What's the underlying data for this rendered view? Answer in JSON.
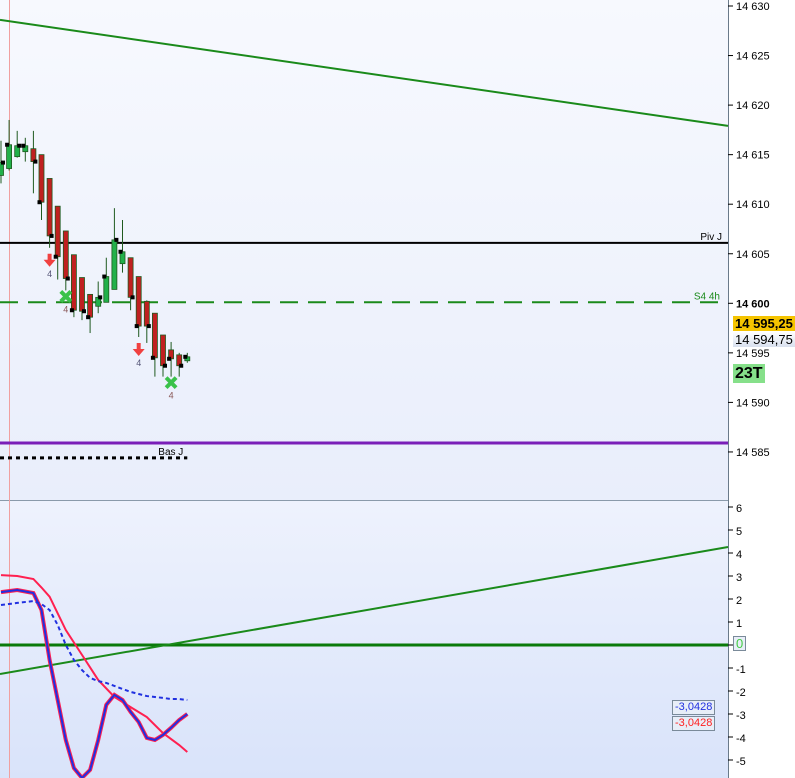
{
  "chart_data": [
    {
      "type": "candlestick",
      "price_axis": {
        "ylim": [
          14580.5,
          14630.6
        ],
        "ticks": [
          "14 630",
          "14 625",
          "14 620",
          "14 615",
          "14 610",
          "14 605",
          "14 600",
          "14 595",
          "14 590",
          "14 585"
        ],
        "tick_values": [
          14630,
          14625,
          14620,
          14615,
          14610,
          14605,
          14600,
          14595,
          14590,
          14585
        ]
      },
      "candles": [
        {
          "o": 14612.9,
          "h": 14616.4,
          "l": 14612.1,
          "c": 14614.2
        },
        {
          "o": 14613.6,
          "h": 14618.5,
          "l": 14613.4,
          "c": 14616.0
        },
        {
          "o": 14614.8,
          "h": 14617.4,
          "l": 14614.7,
          "c": 14615.9
        },
        {
          "o": 14615.3,
          "h": 14616.7,
          "l": 14614.3,
          "c": 14615.9
        },
        {
          "o": 14615.6,
          "h": 14617.4,
          "l": 14611.1,
          "c": 14614.3
        },
        {
          "o": 14615.0,
          "h": 14615.0,
          "l": 14608.4,
          "c": 14610.2
        },
        {
          "o": 14612.6,
          "h": 14612.6,
          "l": 14605.6,
          "c": 14606.8
        },
        {
          "o": 14609.8,
          "h": 14609.8,
          "l": 14602.4,
          "c": 14604.7
        },
        {
          "o": 14607.3,
          "h": 14607.3,
          "l": 14601.3,
          "c": 14602.5
        },
        {
          "o": 14604.9,
          "h": 14604.9,
          "l": 14598.6,
          "c": 14599.3
        },
        {
          "o": 14602.6,
          "h": 14602.6,
          "l": 14598.3,
          "c": 14599.2
        },
        {
          "o": 14600.9,
          "h": 14600.9,
          "l": 14597.0,
          "c": 14598.6
        },
        {
          "o": 14599.7,
          "h": 14602.2,
          "l": 14599.0,
          "c": 14600.6
        },
        {
          "o": 14600.1,
          "h": 14604.6,
          "l": 14600.1,
          "c": 14602.7
        },
        {
          "o": 14601.4,
          "h": 14609.6,
          "l": 14601.4,
          "c": 14606.4
        },
        {
          "o": 14604.0,
          "h": 14608.4,
          "l": 14603.1,
          "c": 14605.2
        },
        {
          "o": 14604.6,
          "h": 14604.6,
          "l": 14599.3,
          "c": 14600.6
        },
        {
          "o": 14602.7,
          "h": 14602.7,
          "l": 14596.6,
          "c": 14597.7
        },
        {
          "o": 14600.2,
          "h": 14600.3,
          "l": 14596.0,
          "c": 14597.7
        },
        {
          "o": 14599.0,
          "h": 14599.0,
          "l": 14592.6,
          "c": 14594.5
        },
        {
          "o": 14596.8,
          "h": 14596.8,
          "l": 14592.6,
          "c": 14593.7
        },
        {
          "o": 14595.3,
          "h": 14596.1,
          "l": 14592.6,
          "c": 14594.4
        },
        {
          "o": 14594.8,
          "h": 14595.0,
          "l": 14592.6,
          "c": 14593.7
        },
        {
          "o": 14594.2,
          "h": 14595.0,
          "l": 14594.0,
          "c": 14594.6
        }
      ],
      "signals": [
        {
          "type": "sell-arrow",
          "index": 6,
          "label": "4"
        },
        {
          "type": "buy-cross",
          "index": 8,
          "label": "4"
        },
        {
          "type": "sell-arrow",
          "index": 17,
          "label": "4"
        },
        {
          "type": "buy-cross",
          "index": 21,
          "label": "4"
        }
      ],
      "levels": [
        {
          "name": "Piv J",
          "value": 14606.1,
          "color": "#000000",
          "style": "solid"
        },
        {
          "name": "S4 4h",
          "value": 14600.1,
          "color": "#1a8a1a",
          "style": "dashed"
        },
        {
          "name": "",
          "value": 14585.9,
          "color": "#7a1fb8",
          "style": "solid"
        },
        {
          "name": "Bas J",
          "value": 14584.4,
          "color": "#000000",
          "style": "dotted",
          "to_index": 23
        }
      ],
      "trendline": {
        "from": 14628.6,
        "to": 14617.9,
        "color": "#1a8a1a"
      },
      "price_tags": [
        {
          "text": "14 595,25",
          "bg": "#f5c400"
        },
        {
          "text": "14 594,75",
          "bg": "#e6ecf7"
        },
        {
          "text": "23T",
          "bg": "#86e08a"
        }
      ]
    },
    {
      "type": "line",
      "ylim": [
        -5.8,
        6.2
      ],
      "ticks": [
        "6",
        "5",
        "4",
        "3",
        "2",
        "1",
        "0",
        "-1",
        "-2",
        "-3",
        "-4",
        "-5"
      ],
      "tick_values": [
        6,
        5,
        4,
        3,
        2,
        1,
        0,
        -1,
        -2,
        -3,
        -4,
        -5
      ],
      "series": [
        {
          "color": "#ff2050",
          "style": "solid",
          "points": [
            [
              0,
              3.04
            ],
            [
              2,
              3.0
            ],
            [
              4,
              2.87
            ],
            [
              5,
              2.5
            ],
            [
              6,
              2.1
            ],
            [
              8,
              0.65
            ],
            [
              10,
              -0.43
            ],
            [
              12,
              -1.52
            ],
            [
              14,
              -2.26
            ],
            [
              16,
              -2.7
            ],
            [
              18,
              -3.13
            ],
            [
              20,
              -3.83
            ],
            [
              22,
              -4.35
            ],
            [
              23,
              -4.65
            ]
          ]
        },
        {
          "color": "#2030e0",
          "style": "solid-double",
          "points": [
            [
              0,
              2.3
            ],
            [
              2,
              2.39
            ],
            [
              4,
              2.26
            ],
            [
              5,
              1.52
            ],
            [
              6,
              -0.65
            ],
            [
              7,
              -2.39
            ],
            [
              8,
              -4.13
            ],
            [
              9,
              -5.35
            ],
            [
              10,
              -5.78
            ],
            [
              11,
              -5.43
            ],
            [
              12,
              -4.13
            ],
            [
              13,
              -2.6
            ],
            [
              14,
              -2.17
            ],
            [
              15,
              -2.39
            ],
            [
              16,
              -2.91
            ],
            [
              17,
              -3.35
            ],
            [
              18,
              -4.04
            ],
            [
              19,
              -4.13
            ],
            [
              20,
              -3.91
            ],
            [
              21,
              -3.6
            ],
            [
              22,
              -3.26
            ],
            [
              23,
              -3.0
            ]
          ]
        },
        {
          "color": "#2030e0",
          "style": "dotted",
          "points": [
            [
              0,
              1.74
            ],
            [
              2,
              1.83
            ],
            [
              4,
              1.91
            ],
            [
              5,
              1.78
            ],
            [
              6,
              1.52
            ],
            [
              7,
              0.87
            ],
            [
              8,
              0
            ],
            [
              9,
              -0.65
            ],
            [
              10,
              -1.09
            ],
            [
              11,
              -1.43
            ],
            [
              12,
              -1.57
            ],
            [
              13,
              -1.65
            ],
            [
              14,
              -1.78
            ],
            [
              15,
              -1.91
            ],
            [
              16,
              -2.04
            ],
            [
              17,
              -2.13
            ],
            [
              18,
              -2.22
            ],
            [
              19,
              -2.26
            ],
            [
              20,
              -2.3
            ],
            [
              21,
              -2.35
            ],
            [
              22,
              -2.35
            ],
            [
              23,
              -2.39
            ]
          ]
        }
      ],
      "zero_line": {
        "value": 0,
        "color": "#0a7a0a"
      },
      "trendline": {
        "from": -1.26,
        "to": 4.26,
        "color": "#1a8a1a"
      },
      "value_tags": [
        {
          "text": "0",
          "color": "#44cc44"
        },
        {
          "text": "-3,0428",
          "color": "#2030e0"
        },
        {
          "text": "-3,0428",
          "color": "#ff2020"
        }
      ]
    }
  ]
}
